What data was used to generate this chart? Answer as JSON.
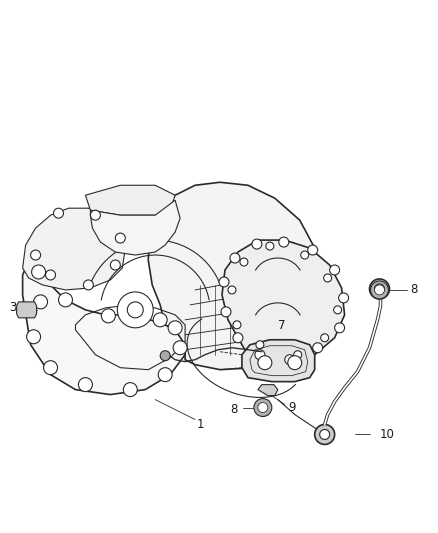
{
  "background_color": "#ffffff",
  "line_color": "#2a2a2a",
  "label_color": "#1a1a1a",
  "fig_width": 4.38,
  "fig_height": 5.33,
  "dpi": 100
}
